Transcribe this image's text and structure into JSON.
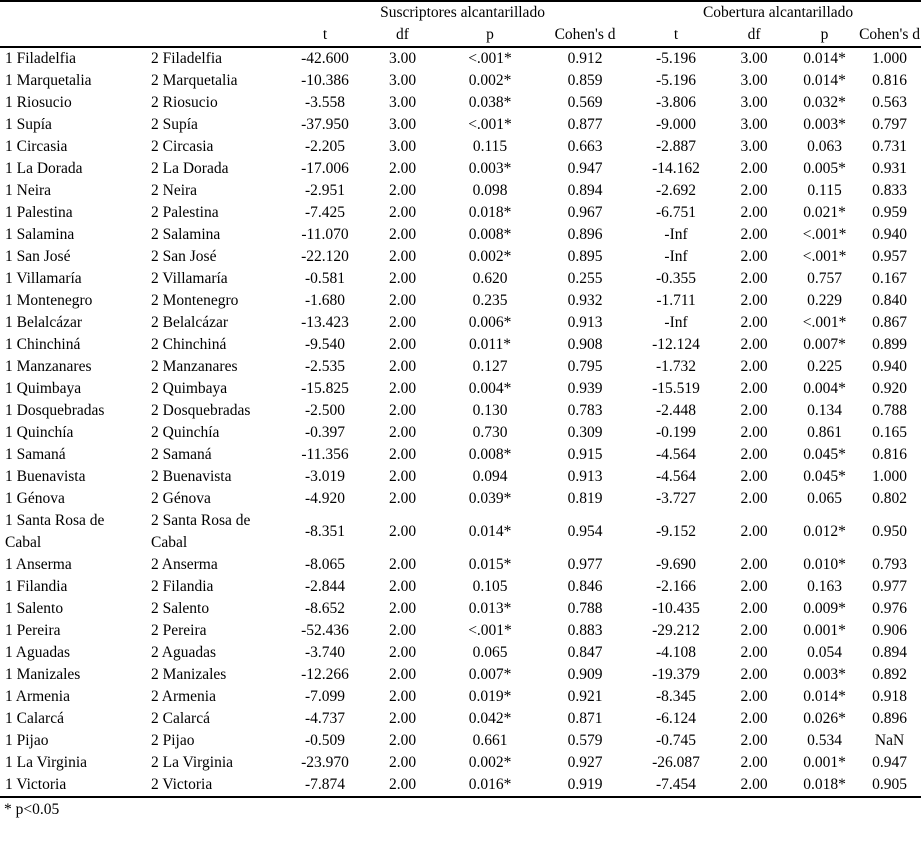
{
  "table": {
    "group_headers": [
      "Suscriptores alcantarillado",
      "Cobertura alcantarillado"
    ],
    "sub_headers": [
      "t",
      "df",
      "p",
      "Cohen's d",
      "t",
      "df",
      "p",
      "Cohen's d"
    ],
    "rows": [
      [
        "1 Filadelfia",
        "2 Filadelfia",
        "-42.600",
        "3.00",
        "<.001*",
        "0.912",
        "-5.196",
        "3.00",
        "0.014*",
        "1.000"
      ],
      [
        "1 Marquetalia",
        "2 Marquetalia",
        "-10.386",
        "3.00",
        "0.002*",
        "0.859",
        "-5.196",
        "3.00",
        "0.014*",
        "0.816"
      ],
      [
        "1 Riosucio",
        "2 Riosucio",
        "-3.558",
        "3.00",
        "0.038*",
        "0.569",
        "-3.806",
        "3.00",
        "0.032*",
        "0.563"
      ],
      [
        "1 Supía",
        "2 Supía",
        "-37.950",
        "3.00",
        "<.001*",
        "0.877",
        "-9.000",
        "3.00",
        "0.003*",
        "0.797"
      ],
      [
        "1 Circasia",
        "2 Circasia",
        "-2.205",
        "3.00",
        "0.115",
        "0.663",
        "-2.887",
        "3.00",
        "0.063",
        "0.731"
      ],
      [
        "1 La Dorada",
        "2 La Dorada",
        "-17.006",
        "2.00",
        "0.003*",
        "0.947",
        "-14.162",
        "2.00",
        "0.005*",
        "0.931"
      ],
      [
        "1 Neira",
        "2 Neira",
        "-2.951",
        "2.00",
        "0.098",
        "0.894",
        "-2.692",
        "2.00",
        "0.115",
        "0.833"
      ],
      [
        "1 Palestina",
        "2 Palestina",
        "-7.425",
        "2.00",
        "0.018*",
        "0.967",
        "-6.751",
        "2.00",
        "0.021*",
        "0.959"
      ],
      [
        "1 Salamina",
        "2 Salamina",
        "-11.070",
        "2.00",
        "0.008*",
        "0.896",
        "-Inf",
        "2.00",
        "<.001*",
        "0.940"
      ],
      [
        "1 San José",
        "2 San José",
        "-22.120",
        "2.00",
        "0.002*",
        "0.895",
        "-Inf",
        "2.00",
        "<.001*",
        "0.957"
      ],
      [
        "1 Villamaría",
        "2 Villamaría",
        "-0.581",
        "2.00",
        "0.620",
        "0.255",
        "-0.355",
        "2.00",
        "0.757",
        "0.167"
      ],
      [
        "1 Montenegro",
        "2 Montenegro",
        "-1.680",
        "2.00",
        "0.235",
        "0.932",
        "-1.711",
        "2.00",
        "0.229",
        "0.840"
      ],
      [
        "1 Belalcázar",
        "2 Belalcázar",
        "-13.423",
        "2.00",
        "0.006*",
        "0.913",
        "-Inf",
        "2.00",
        "<.001*",
        "0.867"
      ],
      [
        "1 Chinchiná",
        "2 Chinchiná",
        "-9.540",
        "2.00",
        "0.011*",
        "0.908",
        "-12.124",
        "2.00",
        "0.007*",
        "0.899"
      ],
      [
        "1 Manzanares",
        "2 Manzanares",
        "-2.535",
        "2.00",
        "0.127",
        "0.795",
        "-1.732",
        "2.00",
        "0.225",
        "0.940"
      ],
      [
        "1 Quimbaya",
        "2 Quimbaya",
        "-15.825",
        "2.00",
        "0.004*",
        "0.939",
        "-15.519",
        "2.00",
        "0.004*",
        "0.920"
      ],
      [
        "1 Dosquebradas",
        "2 Dosquebradas",
        "-2.500",
        "2.00",
        "0.130",
        "0.783",
        "-2.448",
        "2.00",
        "0.134",
        "0.788"
      ],
      [
        "1 Quinchía",
        "2 Quinchía",
        "-0.397",
        "2.00",
        "0.730",
        "0.309",
        "-0.199",
        "2.00",
        "0.861",
        "0.165"
      ],
      [
        "1 Samaná",
        "2 Samaná",
        "-11.356",
        "2.00",
        "0.008*",
        "0.915",
        "-4.564",
        "2.00",
        "0.045*",
        "0.816"
      ],
      [
        "1 Buenavista",
        "2 Buenavista",
        "-3.019",
        "2.00",
        "0.094",
        "0.913",
        "-4.564",
        "2.00",
        "0.045*",
        "1.000"
      ],
      [
        "1 Génova",
        "2 Génova",
        "-4.920",
        "2.00",
        "0.039*",
        "0.819",
        "-3.727",
        "2.00",
        "0.065",
        "0.802"
      ],
      [
        "1 Santa Rosa de Cabal",
        "2 Santa Rosa de Cabal",
        "-8.351",
        "2.00",
        "0.014*",
        "0.954",
        "-9.152",
        "2.00",
        "0.012*",
        "0.950"
      ],
      [
        "1 Anserma",
        "2 Anserma",
        "-8.065",
        "2.00",
        "0.015*",
        "0.977",
        "-9.690",
        "2.00",
        "0.010*",
        "0.793"
      ],
      [
        "1 Filandia",
        "2 Filandia",
        "-2.844",
        "2.00",
        "0.105",
        "0.846",
        "-2.166",
        "2.00",
        "0.163",
        "0.977"
      ],
      [
        "1 Salento",
        "2 Salento",
        "-8.652",
        "2.00",
        "0.013*",
        "0.788",
        "-10.435",
        "2.00",
        "0.009*",
        "0.976"
      ],
      [
        "1 Pereira",
        "2 Pereira",
        "-52.436",
        "2.00",
        "<.001*",
        "0.883",
        "-29.212",
        "2.00",
        "0.001*",
        "0.906"
      ],
      [
        "1 Aguadas",
        "2 Aguadas",
        "-3.740",
        "2.00",
        "0.065",
        "0.847",
        "-4.108",
        "2.00",
        "0.054",
        "0.894"
      ],
      [
        "1 Manizales",
        "2 Manizales",
        "-12.266",
        "2.00",
        "0.007*",
        "0.909",
        "-19.379",
        "2.00",
        "0.003*",
        "0.892"
      ],
      [
        "1 Armenia",
        "2 Armenia",
        "-7.099",
        "2.00",
        "0.019*",
        "0.921",
        "-8.345",
        "2.00",
        "0.014*",
        "0.918"
      ],
      [
        "1 Calarcá",
        "2 Calarcá",
        "-4.737",
        "2.00",
        "0.042*",
        "0.871",
        "-6.124",
        "2.00",
        "0.026*",
        "0.896"
      ],
      [
        "1 Pijao",
        "2 Pijao",
        "-0.509",
        "2.00",
        "0.661",
        "0.579",
        "-0.745",
        "2.00",
        "0.534",
        "NaN"
      ],
      [
        "1 La Virginia",
        "2 La Virginia",
        "-23.970",
        "2.00",
        "0.002*",
        "0.927",
        "-26.087",
        "2.00",
        "0.001*",
        "0.947"
      ],
      [
        "1 Victoria",
        "2 Victoria",
        "-7.874",
        "2.00",
        "0.016*",
        "0.919",
        "-7.454",
        "2.00",
        "0.018*",
        "0.905"
      ]
    ],
    "footnote": "* p<0.05"
  }
}
